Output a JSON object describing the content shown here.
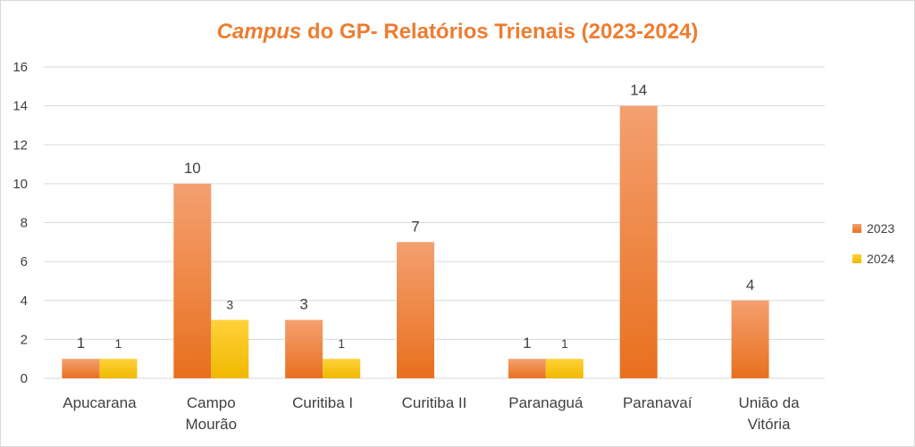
{
  "chart_data": {
    "type": "bar",
    "title_em": "Campus",
    "title_rest": " do GP- Relatórios Trienais (2023-2024)",
    "categories": [
      [
        "Apucarana"
      ],
      [
        "Campo",
        "Mourão"
      ],
      [
        "Curitiba I"
      ],
      [
        "Curitiba II"
      ],
      [
        "Paranaguá"
      ],
      [
        "Paranavaí"
      ],
      [
        "União da",
        "Vitória"
      ]
    ],
    "series": [
      {
        "name": "2023",
        "values": [
          1,
          10,
          3,
          7,
          1,
          14,
          4
        ],
        "color_top": "#f4a070",
        "color_bottom": "#e8701e"
      },
      {
        "name": "2024",
        "values": [
          1,
          3,
          1,
          null,
          1,
          null,
          null
        ],
        "color_top": "#ffd23a",
        "color_bottom": "#f0b800"
      }
    ],
    "ylim": [
      0,
      16
    ],
    "yticks": [
      0,
      2,
      4,
      6,
      8,
      10,
      12,
      14,
      16
    ],
    "grid": true,
    "legend_position": "right",
    "title_color": "#ed7d31"
  }
}
